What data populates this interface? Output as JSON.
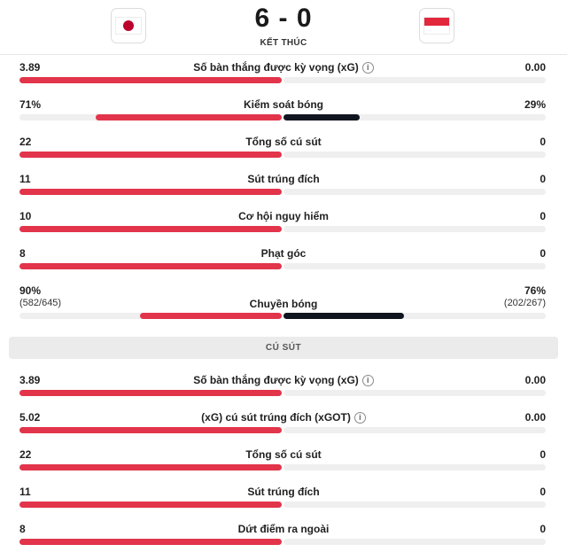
{
  "match": {
    "home_flag": "japan-flag-icon",
    "away_flag": "indonesia-flag-icon",
    "score": "6 - 0",
    "status": "KẾT THÚC"
  },
  "colors": {
    "home_bar": "#e2344a",
    "away_bar": "#10151f",
    "japan_red": "#bc002d",
    "indonesia_red": "#e3283c"
  },
  "top_stats": [
    {
      "label": "Số bàn thắng được kỳ vọng (xG)",
      "home": "3.89",
      "away": "0.00",
      "home_share": 1.0,
      "away_share": 0.0,
      "info": true
    },
    {
      "label": "Kiểm soát bóng",
      "home": "71%",
      "away": "29%",
      "home_share": 0.71,
      "away_share": 0.29,
      "info": false
    },
    {
      "label": "Tổng số cú sút",
      "home": "22",
      "away": "0",
      "home_share": 1.0,
      "away_share": 0.0,
      "info": false
    },
    {
      "label": "Sút trúng đích",
      "home": "11",
      "away": "0",
      "home_share": 1.0,
      "away_share": 0.0,
      "info": false
    },
    {
      "label": "Cơ hội nguy hiểm",
      "home": "10",
      "away": "0",
      "home_share": 1.0,
      "away_share": 0.0,
      "info": false
    },
    {
      "label": "Phạt góc",
      "home": "8",
      "away": "0",
      "home_share": 1.0,
      "away_share": 0.0,
      "info": false
    },
    {
      "label": "Chuyền bóng",
      "home": "90%",
      "away": "76%",
      "home_sub": "(582/645)",
      "away_sub": "(202/267)",
      "home_share": 0.54,
      "away_share": 0.46,
      "info": false
    }
  ],
  "section_title": "CÚ SÚT",
  "shot_stats": [
    {
      "label": "Số bàn thắng được kỳ vọng (xG)",
      "home": "3.89",
      "away": "0.00",
      "home_share": 1.0,
      "away_share": 0.0,
      "info": true
    },
    {
      "label": "(xG) cú sút trúng đích (xGOT)",
      "home": "5.02",
      "away": "0.00",
      "home_share": 1.0,
      "away_share": 0.0,
      "info": true
    },
    {
      "label": "Tổng số cú sút",
      "home": "22",
      "away": "0",
      "home_share": 1.0,
      "away_share": 0.0,
      "info": false
    },
    {
      "label": "Sút trúng đích",
      "home": "11",
      "away": "0",
      "home_share": 1.0,
      "away_share": 0.0,
      "info": false
    },
    {
      "label": "Dứt điểm ra ngoài",
      "home": "8",
      "away": "0",
      "home_share": 1.0,
      "away_share": 0.0,
      "info": false
    }
  ]
}
